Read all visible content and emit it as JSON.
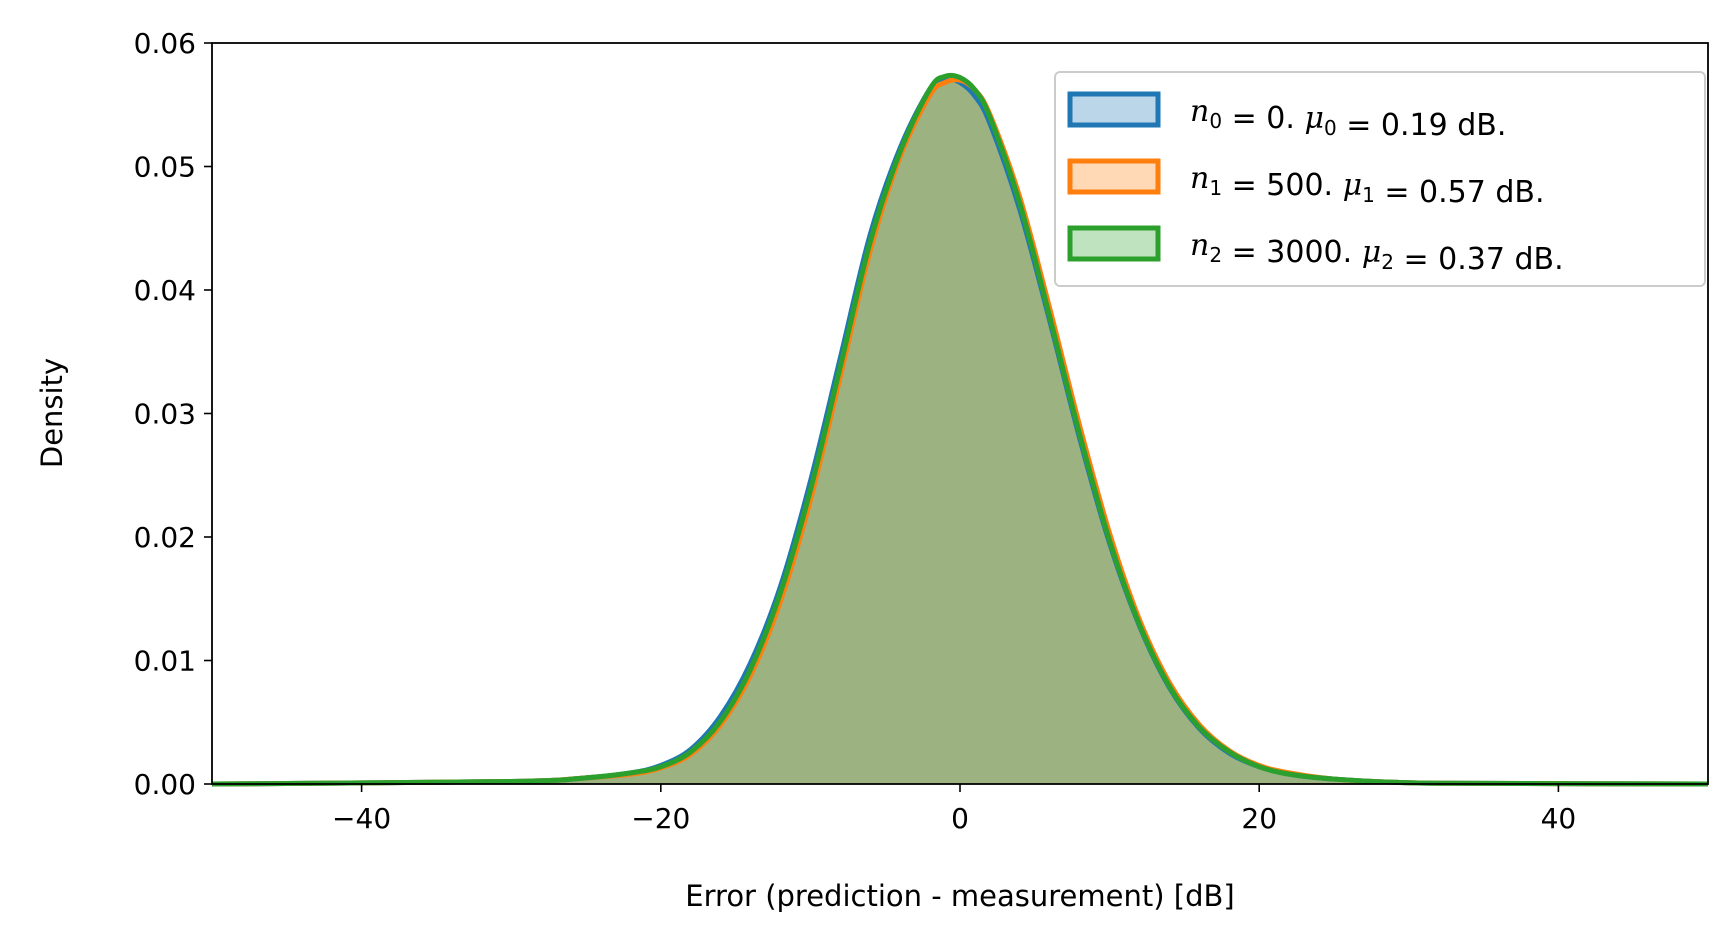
{
  "chart_data": {
    "type": "area",
    "title": "",
    "xlabel": "Error (prediction - measurement) [dB]",
    "ylabel": "Density",
    "xlim": [
      -50,
      50
    ],
    "ylim": [
      0,
      0.06
    ],
    "xticks": [
      -40,
      -20,
      0,
      20,
      40
    ],
    "xtick_labels": [
      "−40",
      "−20",
      "0",
      "20",
      "40"
    ],
    "yticks": [
      0.0,
      0.01,
      0.02,
      0.03,
      0.04,
      0.05,
      0.06
    ],
    "ytick_labels": [
      "0.00",
      "0.01",
      "0.02",
      "0.03",
      "0.04",
      "0.05",
      "0.06"
    ],
    "grid": false,
    "legend_position": "top-right",
    "series": [
      {
        "name": "n0 = 0. μ0 = 0.19 dB.",
        "legend": {
          "n_sym": "n",
          "n_sub": "0",
          "n_val": "0.",
          "mu_sym": "μ",
          "mu_sub": "0",
          "mu_val": "0.19 dB."
        },
        "color": "#1f77b4",
        "fill": "#aec7e8",
        "x": [
          -50,
          -30,
          -25,
          -22,
          -20,
          -18,
          -16,
          -14,
          -12,
          -10,
          -8,
          -6,
          -4,
          -2,
          -1,
          0,
          1,
          2,
          4,
          6,
          8,
          10,
          12,
          14,
          16,
          18,
          20,
          22,
          25,
          30,
          35,
          50
        ],
        "values": [
          0.0,
          0.0002,
          0.0005,
          0.0009,
          0.0015,
          0.0028,
          0.0055,
          0.0098,
          0.016,
          0.0245,
          0.0345,
          0.0445,
          0.0515,
          0.0563,
          0.0571,
          0.0568,
          0.0557,
          0.0535,
          0.0465,
          0.0375,
          0.028,
          0.0195,
          0.0128,
          0.0078,
          0.0045,
          0.0025,
          0.0014,
          0.0008,
          0.0004,
          0.0001,
          5e-05,
          0.0
        ]
      },
      {
        "name": "n1 = 500. μ1 = 0.57 dB.",
        "legend": {
          "n_sym": "n",
          "n_sub": "1",
          "n_val": "500.",
          "mu_sym": "μ",
          "mu_sub": "1",
          "mu_val": "0.57 dB."
        },
        "color": "#ff7f0e",
        "fill": "#ffbb78",
        "x": [
          -50,
          -30,
          -25,
          -22,
          -20,
          -18,
          -16,
          -14,
          -12,
          -10,
          -8,
          -6,
          -4,
          -2,
          -1,
          0,
          1,
          2,
          4,
          6,
          8,
          10,
          12,
          14,
          16,
          18,
          20,
          22,
          25,
          30,
          35,
          50
        ],
        "values": [
          0.0,
          0.0002,
          0.0005,
          0.0008,
          0.0013,
          0.0024,
          0.0048,
          0.0088,
          0.0148,
          0.023,
          0.033,
          0.0432,
          0.0508,
          0.0558,
          0.0568,
          0.057,
          0.0562,
          0.0542,
          0.0475,
          0.0385,
          0.029,
          0.0203,
          0.0133,
          0.0082,
          0.0048,
          0.0027,
          0.0015,
          0.0009,
          0.0004,
          0.0001,
          5e-05,
          0.0
        ]
      },
      {
        "name": "n2 = 3000. μ2 = 0.37 dB.",
        "legend": {
          "n_sym": "n",
          "n_sub": "2",
          "n_val": "3000.",
          "mu_sym": "μ",
          "mu_sub": "2",
          "mu_val": "0.37 dB."
        },
        "color": "#2ca02c",
        "fill": "#98df8a",
        "x": [
          -50,
          -30,
          -25,
          -22,
          -20,
          -18,
          -16,
          -14,
          -12,
          -10,
          -8,
          -6,
          -4,
          -2,
          -1,
          0,
          1,
          2,
          4,
          6,
          8,
          10,
          12,
          14,
          16,
          18,
          20,
          22,
          25,
          30,
          35,
          50
        ],
        "values": [
          0.0,
          0.0002,
          0.0005,
          0.0009,
          0.0014,
          0.0026,
          0.0051,
          0.0093,
          0.0155,
          0.0238,
          0.0338,
          0.0439,
          0.0512,
          0.0563,
          0.0573,
          0.0572,
          0.0562,
          0.054,
          0.047,
          0.0378,
          0.0283,
          0.0197,
          0.0129,
          0.0079,
          0.0046,
          0.0026,
          0.0014,
          0.0008,
          0.0004,
          0.0001,
          5e-05,
          0.0
        ]
      }
    ]
  }
}
